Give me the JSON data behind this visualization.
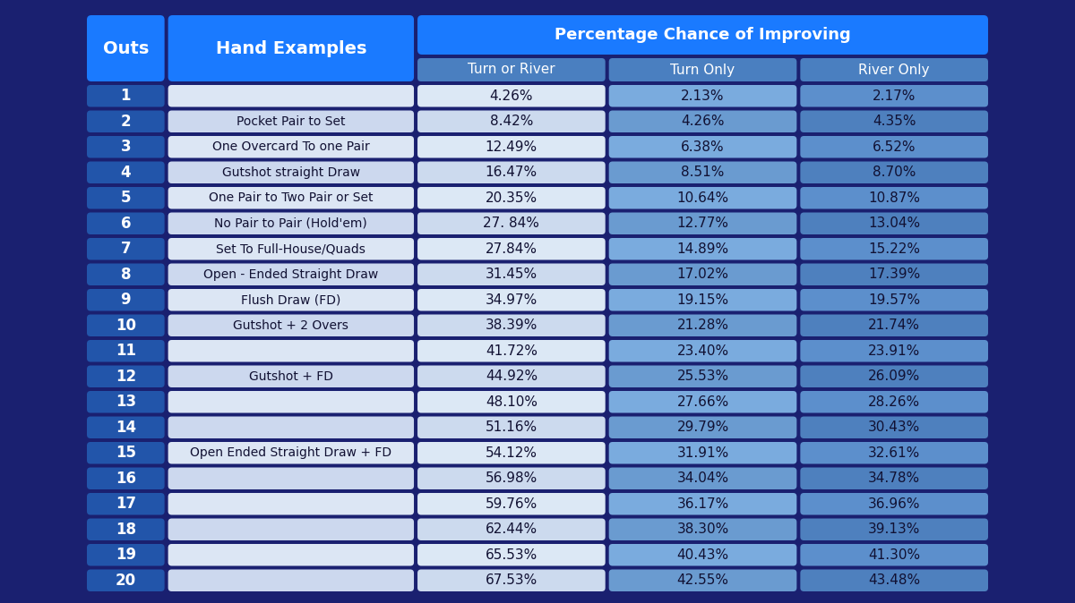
{
  "bg_color": "#1a2070",
  "header_main_color": "#1a7aff",
  "col_header_color": "#4a7fc0",
  "outs_col_color": "#2255aa",
  "hand_col_light": "#dce6f4",
  "hand_col_dark": "#ccd8ee",
  "tor_light": "#dce8f5",
  "tor_dark": "#ccdaee",
  "turn_light": "#7aabde",
  "turn_dark": "#6a9bd0",
  "river_light": "#5c8fcc",
  "river_dark": "#4e80be",
  "outs_header": "Outs",
  "hand_header": "Hand Examples",
  "pct_header": "Percentage Chance of Improving",
  "col1_header": "Turn or River",
  "col2_header": "Turn Only",
  "col3_header": "River Only",
  "rows": [
    [
      1,
      "",
      "4.26%",
      "2.13%",
      "2.17%"
    ],
    [
      2,
      "Pocket Pair to Set",
      "8.42%",
      "4.26%",
      "4.35%"
    ],
    [
      3,
      "One Overcard To one Pair",
      "12.49%",
      "6.38%",
      "6.52%"
    ],
    [
      4,
      "Gutshot straight Draw",
      "16.47%",
      "8.51%",
      "8.70%"
    ],
    [
      5,
      "One Pair to Two Pair or Set",
      "20.35%",
      "10.64%",
      "10.87%"
    ],
    [
      6,
      "No Pair to Pair (Hold'em)",
      "27. 84%",
      "12.77%",
      "13.04%"
    ],
    [
      7,
      "Set To Full-House/Quads",
      "27.84%",
      "14.89%",
      "15.22%"
    ],
    [
      8,
      "Open - Ended Straight Draw",
      "31.45%",
      "17.02%",
      "17.39%"
    ],
    [
      9,
      "Flush Draw (FD)",
      "34.97%",
      "19.15%",
      "19.57%"
    ],
    [
      10,
      "Gutshot + 2 Overs",
      "38.39%",
      "21.28%",
      "21.74%"
    ],
    [
      11,
      "",
      "41.72%",
      "23.40%",
      "23.91%"
    ],
    [
      12,
      "Gutshot + FD",
      "44.92%",
      "25.53%",
      "26.09%"
    ],
    [
      13,
      "",
      "48.10%",
      "27.66%",
      "28.26%"
    ],
    [
      14,
      "",
      "51.16%",
      "29.79%",
      "30.43%"
    ],
    [
      15,
      "Open Ended Straight Draw + FD",
      "54.12%",
      "31.91%",
      "32.61%"
    ],
    [
      16,
      "",
      "56.98%",
      "34.04%",
      "34.78%"
    ],
    [
      17,
      "",
      "59.76%",
      "36.17%",
      "36.96%"
    ],
    [
      18,
      "",
      "62.44%",
      "38.30%",
      "39.13%"
    ],
    [
      19,
      "",
      "65.53%",
      "40.43%",
      "41.30%"
    ],
    [
      20,
      "",
      "67.53%",
      "42.55%",
      "43.48%"
    ]
  ]
}
